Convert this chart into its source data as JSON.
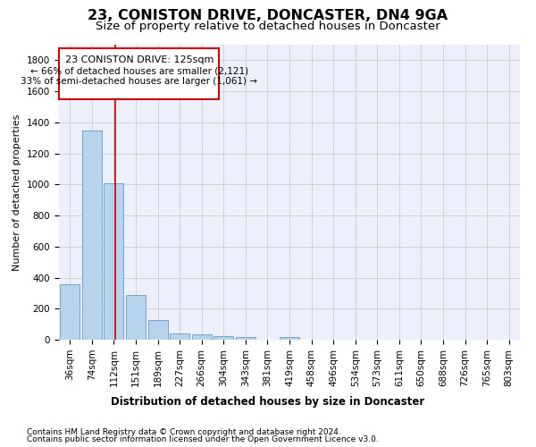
{
  "title": "23, CONISTON DRIVE, DONCASTER, DN4 9GA",
  "subtitle": "Size of property relative to detached houses in Doncaster",
  "xlabel": "Distribution of detached houses by size in Doncaster",
  "ylabel": "Number of detached properties",
  "footer1": "Contains HM Land Registry data © Crown copyright and database right 2024.",
  "footer2": "Contains public sector information licensed under the Open Government Licence v3.0.",
  "bin_labels": [
    "36sqm",
    "74sqm",
    "112sqm",
    "151sqm",
    "189sqm",
    "227sqm",
    "266sqm",
    "304sqm",
    "343sqm",
    "381sqm",
    "419sqm",
    "458sqm",
    "496sqm",
    "534sqm",
    "573sqm",
    "611sqm",
    "650sqm",
    "688sqm",
    "726sqm",
    "765sqm",
    "803sqm"
  ],
  "bar_values": [
    355,
    1345,
    1010,
    290,
    125,
    42,
    33,
    22,
    18,
    0,
    20,
    0,
    0,
    0,
    0,
    0,
    0,
    0,
    0,
    0,
    0
  ],
  "bar_color": "#b8d4ed",
  "bar_edge_color": "#6699cc",
  "property_label": "23 CONISTON DRIVE: 125sqm",
  "annotation_line1": "← 66% of detached houses are smaller (2,121)",
  "annotation_line2": "33% of semi-detached houses are larger (1,061) →",
  "vline_position": 2.08,
  "vline_color": "#cc0000",
  "ylim": [
    0,
    1900
  ],
  "yticks": [
    0,
    200,
    400,
    600,
    800,
    1000,
    1200,
    1400,
    1600,
    1800
  ],
  "background_color": "#edf0fb",
  "grid_color": "#cccccc",
  "annotation_box_color": "#cc0000",
  "title_fontsize": 11.5,
  "subtitle_fontsize": 9.5,
  "ylabel_fontsize": 8,
  "tick_fontsize": 7.5,
  "xlabel_fontsize": 8.5,
  "footer_fontsize": 6.5,
  "annot_fontsize": 7.5
}
